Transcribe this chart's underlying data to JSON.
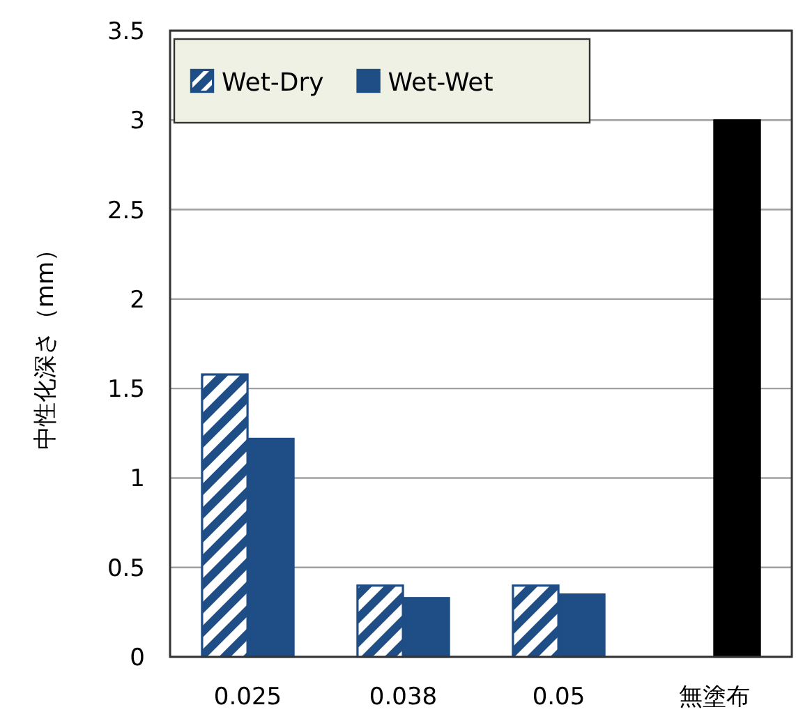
{
  "chart_data": {
    "type": "bar",
    "ylabel": "中性化深さ（mm）",
    "categories": [
      "0.025",
      "0.038",
      "0.05",
      "無塗布"
    ],
    "series": [
      {
        "name": "Wet-Dry",
        "color": "#1f4e86",
        "values": [
          1.58,
          0.4,
          0.4,
          null
        ]
      },
      {
        "name": "Wet-Wet",
        "color": "#1f4e86",
        "colors": [
          "#1f4e86",
          "#1f4e86",
          "#1f4e86",
          "#000000"
        ],
        "values": [
          1.22,
          0.33,
          0.35,
          3.0
        ]
      }
    ],
    "ylim": [
      0,
      3.5
    ],
    "yticks": [
      0,
      0.5,
      1,
      1.5,
      2,
      2.5,
      3,
      3.5
    ],
    "grid": "y",
    "legend": "top left"
  }
}
